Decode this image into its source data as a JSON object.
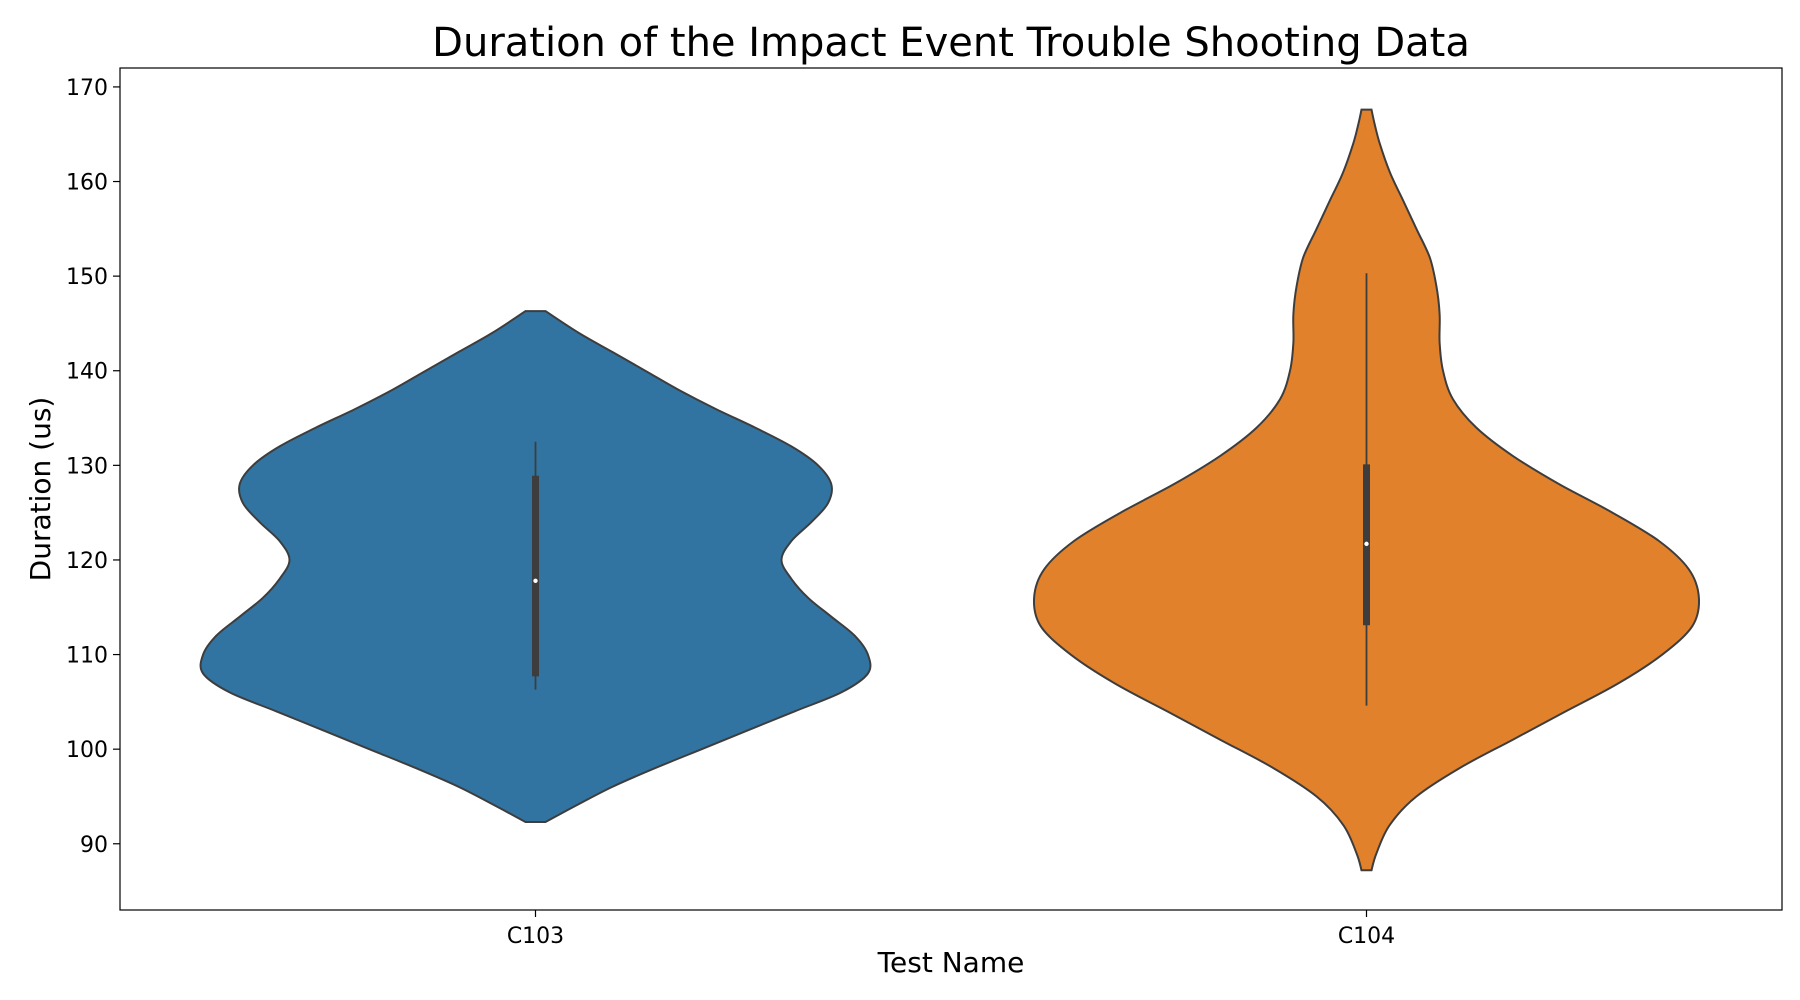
{
  "chart_data": {
    "type": "violin",
    "title": "Duration of the Impact Event Trouble Shooting Data",
    "xlabel": "Test Name",
    "ylabel": "Duration (us)",
    "ylim": [
      83,
      172
    ],
    "yticks": [
      90,
      100,
      110,
      120,
      130,
      140,
      150,
      160,
      170
    ],
    "categories": [
      "C103",
      "C104"
    ],
    "grid": false,
    "series": [
      {
        "category": "C103",
        "color": "#3274a1",
        "min": 92.3,
        "max": 146.3,
        "whisker_low": 106.3,
        "q1": 107.7,
        "median": 117.8,
        "q3": 128.9,
        "whisker_high": 132.5,
        "density": [
          [
            92.3,
            0.03
          ],
          [
            94,
            0.12
          ],
          [
            96,
            0.23
          ],
          [
            98,
            0.36
          ],
          [
            100,
            0.5
          ],
          [
            102,
            0.64
          ],
          [
            104,
            0.78
          ],
          [
            106,
            0.92
          ],
          [
            108,
            1.0
          ],
          [
            110,
            1.0
          ],
          [
            112,
            0.96
          ],
          [
            114,
            0.89
          ],
          [
            116,
            0.82
          ],
          [
            118,
            0.77
          ],
          [
            120,
            0.74
          ],
          [
            122,
            0.77
          ],
          [
            124,
            0.83
          ],
          [
            126,
            0.88
          ],
          [
            128,
            0.89
          ],
          [
            130,
            0.85
          ],
          [
            132,
            0.77
          ],
          [
            134,
            0.66
          ],
          [
            136,
            0.54
          ],
          [
            138,
            0.43
          ],
          [
            140,
            0.33
          ],
          [
            142,
            0.23
          ],
          [
            144,
            0.13
          ],
          [
            146.3,
            0.03
          ]
        ]
      },
      {
        "category": "C104",
        "color": "#e1812c",
        "min": 87.2,
        "max": 167.6,
        "whisker_low": 104.6,
        "q1": 113.1,
        "median": 121.7,
        "q3": 130.1,
        "whisker_high": 150.3,
        "density": [
          [
            87.2,
            0.015
          ],
          [
            89,
            0.03
          ],
          [
            92,
            0.07
          ],
          [
            95,
            0.15
          ],
          [
            98,
            0.28
          ],
          [
            101,
            0.44
          ],
          [
            104,
            0.6
          ],
          [
            107,
            0.76
          ],
          [
            110,
            0.89
          ],
          [
            113,
            0.98
          ],
          [
            116,
            1.0
          ],
          [
            119,
            0.97
          ],
          [
            122,
            0.88
          ],
          [
            125,
            0.74
          ],
          [
            128,
            0.58
          ],
          [
            131,
            0.44
          ],
          [
            134,
            0.33
          ],
          [
            137,
            0.26
          ],
          [
            140,
            0.23
          ],
          [
            143,
            0.22
          ],
          [
            146,
            0.22
          ],
          [
            149,
            0.21
          ],
          [
            152,
            0.19
          ],
          [
            155,
            0.15
          ],
          [
            158,
            0.11
          ],
          [
            161,
            0.07
          ],
          [
            164,
            0.04
          ],
          [
            166,
            0.025
          ],
          [
            167.6,
            0.015
          ]
        ]
      }
    ]
  }
}
